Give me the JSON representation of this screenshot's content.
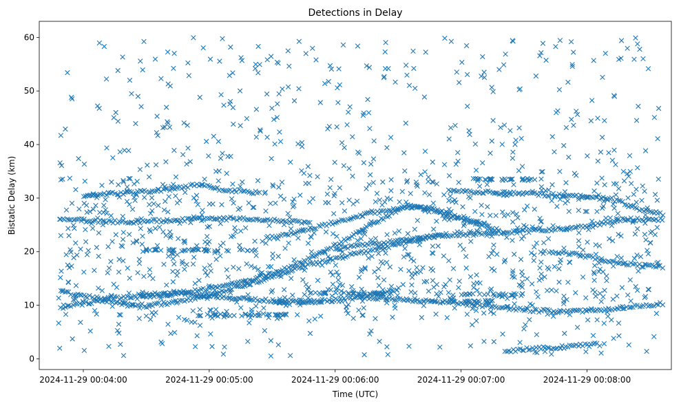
{
  "chart_data": {
    "type": "scatter",
    "title": "Detections in Delay",
    "xlabel": "Time (UTC)",
    "ylabel": "Bistatic Delay (km)",
    "x_unit": "time of day 2024-11-29 (minutes after 00:00 UTC)",
    "xlim": [
      3.65,
      8.67
    ],
    "ylim": [
      -2,
      63
    ],
    "x_ticks": [
      {
        "value": 4,
        "label": "2024-11-29 00:04:00"
      },
      {
        "value": 5,
        "label": "2024-11-29 00:05:00"
      },
      {
        "value": 6,
        "label": "2024-11-29 00:06:00"
      },
      {
        "value": 7,
        "label": "2024-11-29 00:07:00"
      },
      {
        "value": 8,
        "label": "2024-11-29 00:08:00"
      }
    ],
    "y_ticks": [
      0,
      10,
      20,
      30,
      40,
      50,
      60
    ],
    "grid": false,
    "legend": "none",
    "marker": "x",
    "color": "#1f77b4",
    "time_range": [
      "00:03:48",
      "00:08:34"
    ],
    "delay_range": [
      0.5,
      60
    ],
    "tracks": [
      {
        "x": [
          3.82,
          4.05,
          4.3,
          4.5,
          4.75,
          5.0,
          5.25,
          5.5,
          5.75,
          6.0,
          6.25,
          6.5,
          6.7,
          6.88
        ],
        "y": [
          12.5,
          11.5,
          10.3,
          9.9,
          10.6,
          12.0,
          13.6,
          15.3,
          17.3,
          18.7,
          20.0,
          21.4,
          22.6,
          23.3
        ]
      },
      {
        "x": [
          4.45,
          4.7,
          5.0,
          5.3,
          5.55,
          5.8,
          6.1,
          6.4,
          6.55,
          6.75,
          7.0,
          7.2
        ],
        "y": [
          11.5,
          12.1,
          13.1,
          14.5,
          16.3,
          18.8,
          22.5,
          26.5,
          28.5,
          28.0,
          26.5,
          25.2
        ]
      },
      {
        "x": [
          5.45,
          5.7,
          5.95,
          6.2,
          6.45,
          6.65,
          6.85,
          7.1,
          7.3
        ],
        "y": [
          22.5,
          23.7,
          25.2,
          26.8,
          27.8,
          28.6,
          27.0,
          25.5,
          24.0
        ]
      },
      {
        "x": [
          3.82,
          4.0,
          4.2,
          4.5,
          4.8,
          5.0,
          5.2,
          5.5,
          5.8,
          6.05,
          6.3,
          6.5
        ],
        "y": [
          9.6,
          10.3,
          11.2,
          12.0,
          12.2,
          11.8,
          11.3,
          10.8,
          10.7,
          11.0,
          12.0,
          13.0
        ]
      },
      {
        "x": [
          3.82,
          4.1,
          4.4,
          4.65,
          4.9,
          5.2,
          5.5,
          5.8
        ],
        "y": [
          26.0,
          25.7,
          25.6,
          25.8,
          26.0,
          26.2,
          25.9,
          25.4
        ]
      },
      {
        "x": [
          4.0,
          4.3,
          4.5,
          4.75,
          4.9,
          5.1,
          5.4
        ],
        "y": [
          30.5,
          30.9,
          31.2,
          31.8,
          32.6,
          31.6,
          31.0
        ]
      },
      {
        "x": [
          6.0,
          6.3,
          6.6,
          6.9,
          7.2,
          7.5,
          7.85,
          8.1,
          8.3,
          8.6
        ],
        "y": [
          20.5,
          21.4,
          22.3,
          23.0,
          23.5,
          23.8,
          24.3,
          25.2,
          26.0,
          26.0
        ]
      },
      {
        "x": [
          6.2,
          6.5,
          6.8,
          7.0,
          7.25,
          7.5,
          7.8,
          8.0,
          8.2,
          8.4,
          8.6
        ],
        "y": [
          11.5,
          11.1,
          10.7,
          10.3,
          9.8,
          9.1,
          8.8,
          9.0,
          9.4,
          9.9,
          10.3
        ]
      },
      {
        "x": [
          7.7,
          7.9,
          8.05,
          8.2,
          8.35,
          8.5,
          8.6
        ],
        "y": [
          20.0,
          19.5,
          18.9,
          18.1,
          17.6,
          17.3,
          17.1
        ]
      },
      {
        "x": [
          7.35,
          7.5,
          7.65,
          7.8,
          7.95,
          8.1
        ],
        "y": [
          1.5,
          1.8,
          2.0,
          2.2,
          2.5,
          2.7
        ]
      },
      {
        "x": [
          6.9,
          7.2,
          7.5,
          7.9,
          8.2,
          8.4,
          8.6
        ],
        "y": [
          31.3,
          31.1,
          30.8,
          30.4,
          29.8,
          28.0,
          27.0
        ]
      }
    ],
    "bands": [
      {
        "x0": 4.45,
        "x1": 5.4,
        "y": 20.3
      },
      {
        "x0": 4.9,
        "x1": 5.65,
        "y": 8.2
      },
      {
        "x0": 5.5,
        "x1": 5.95,
        "y": 10.6
      },
      {
        "x0": 6.7,
        "x1": 7.25,
        "y": 10.7
      },
      {
        "x0": 5.8,
        "x1": 6.45,
        "y": 12.2
      },
      {
        "x0": 7.0,
        "x1": 7.5,
        "y": 12.0
      },
      {
        "x0": 7.0,
        "x1": 7.6,
        "y": 33.5
      }
    ],
    "noise_count": 1300
  }
}
